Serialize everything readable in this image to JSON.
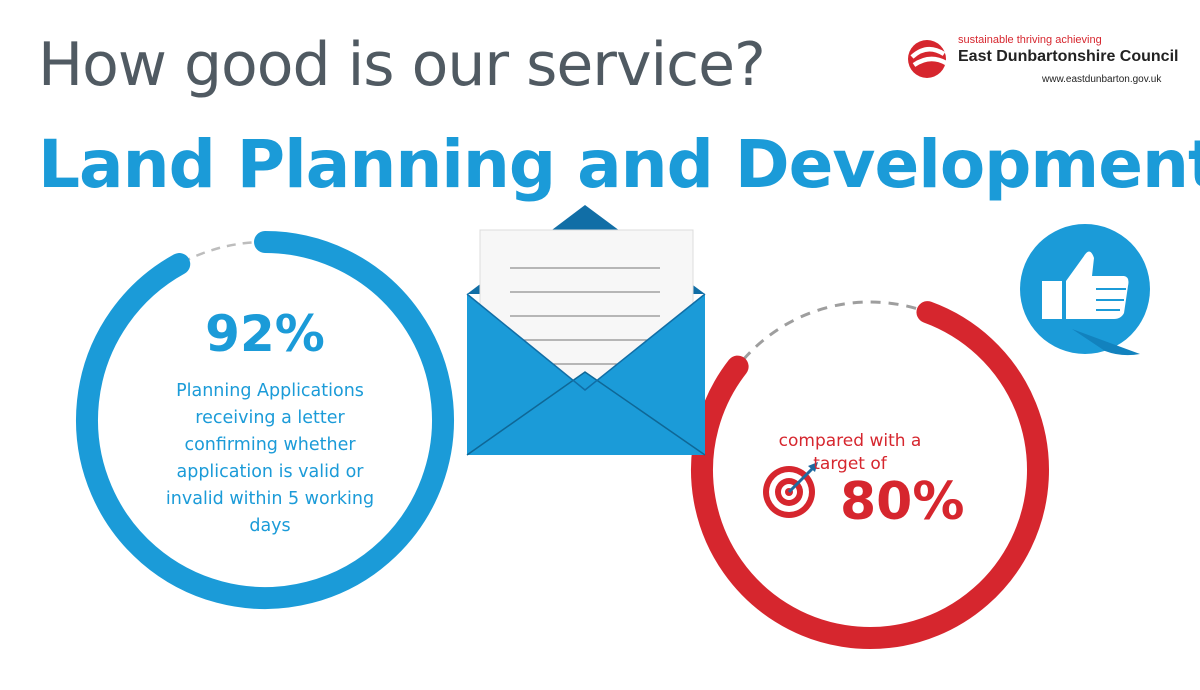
{
  "header": {
    "title": "How good is our service?",
    "subtitle": "Land Planning and Development"
  },
  "logo": {
    "tagline": "sustainable thriving achieving",
    "name": "East Dunbartonshire Council",
    "url": "www.eastdunbarton.gov.uk"
  },
  "result": {
    "value": "92%",
    "description": "Planning Applications receiving a letter confirming whether application is valid or invalid within 5 working days",
    "progress_fraction": 0.92
  },
  "target": {
    "label": "compared with a target of",
    "value": "80%",
    "progress_fraction": 0.8
  },
  "icons": [
    "envelope-icon",
    "thumbs-up-icon",
    "target-icon"
  ],
  "colors": {
    "blue": "#1b9bd8",
    "red": "#d6262e",
    "grey_text": "#505a62"
  }
}
